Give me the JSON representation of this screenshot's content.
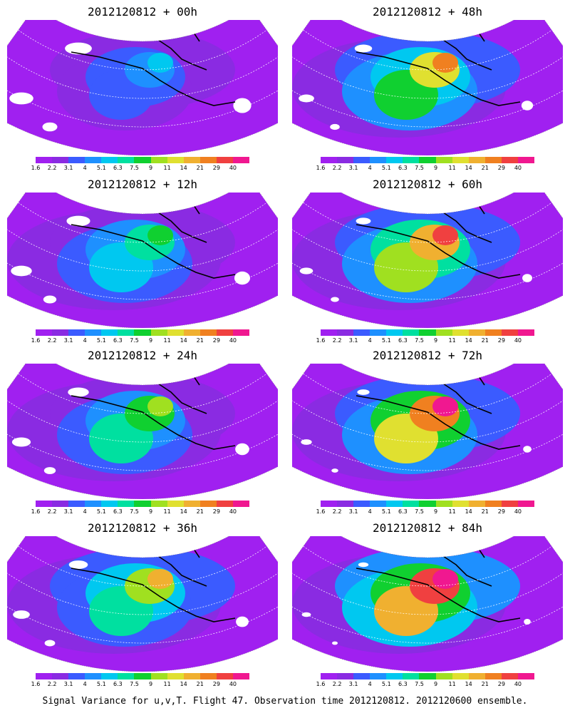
{
  "panels": [
    {
      "title": "2012120812 + 00h",
      "intensity": 0.25
    },
    {
      "title": "2012120812 + 48h",
      "intensity": 0.62
    },
    {
      "title": "2012120812 + 12h",
      "intensity": 0.38
    },
    {
      "title": "2012120812 + 60h",
      "intensity": 0.72
    },
    {
      "title": "2012120812 + 24h",
      "intensity": 0.48
    },
    {
      "title": "2012120812 + 72h",
      "intensity": 0.82
    },
    {
      "title": "2012120812 + 36h",
      "intensity": 0.56
    },
    {
      "title": "2012120812 + 84h",
      "intensity": 0.9
    }
  ],
  "colorbar": {
    "labels": [
      "1.6",
      "2.2",
      "3.1",
      "4",
      "5.1",
      "6.3",
      "7.5",
      "9",
      "11",
      "14",
      "21",
      "29",
      "40"
    ],
    "colors": [
      "#a020f0",
      "#8a2be2",
      "#3b5bff",
      "#1e90ff",
      "#00c8f0",
      "#00e0a0",
      "#10d030",
      "#a0e020",
      "#e0e030",
      "#f0b030",
      "#f08020",
      "#f04040",
      "#f01890"
    ]
  },
  "footer": "Signal Variance for u,v,T. Flight 47. Observation time 2012120812. 2012120600 ensemble."
}
